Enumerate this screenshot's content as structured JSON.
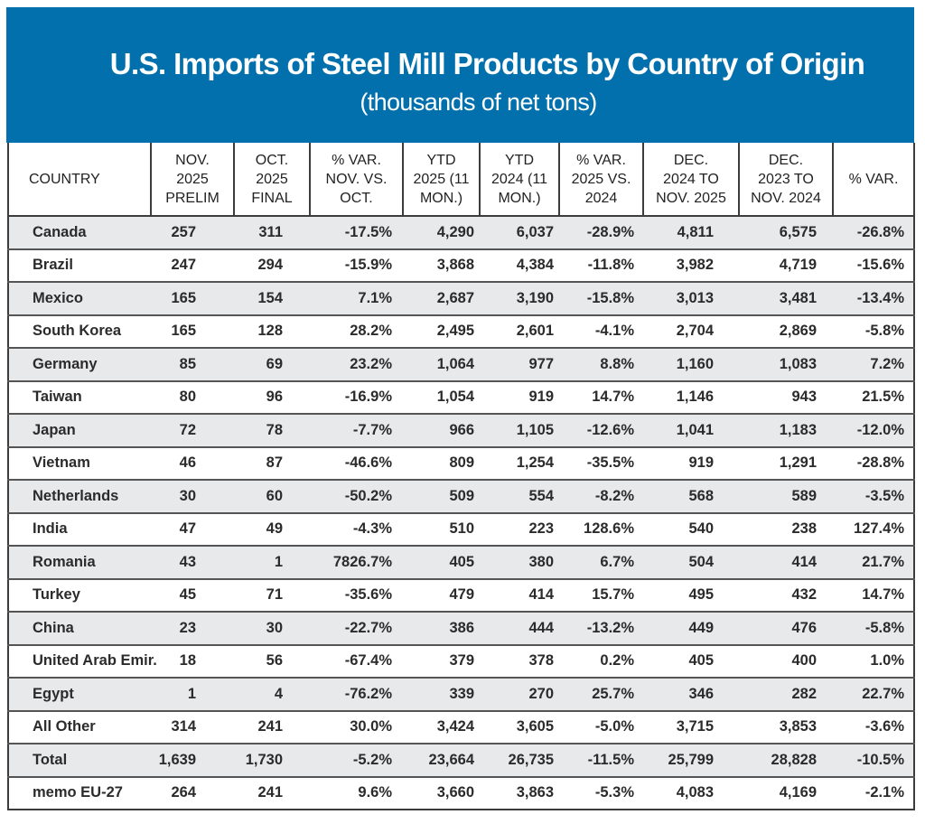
{
  "header": {
    "title": "U.S. Imports of Steel Mill Products by Country of Origin",
    "subtitle": "(thousands of net tons)",
    "banner_color": "#0270ad"
  },
  "table": {
    "columns": [
      "COUNTRY",
      "NOV. 2025 PRELIM",
      "OCT. 2025 FINAL",
      "% VAR. NOV. VS. OCT.",
      "YTD 2025 (11 MON.)",
      "YTD 2024 (11 MON.)",
      "% VAR. 2025 VS. 2024",
      "DEC. 2024 TO NOV. 2025",
      "DEC. 2023 TO NOV. 2024",
      "% VAR."
    ],
    "column_lines": [
      [
        "COUNTRY"
      ],
      [
        "NOV.",
        "2025",
        "PRELIM"
      ],
      [
        "OCT.",
        "2025",
        "FINAL"
      ],
      [
        "% VAR.",
        "NOV. VS.",
        "OCT."
      ],
      [
        "YTD",
        "2025 (11",
        "MON.)"
      ],
      [
        "YTD",
        "2024 (11",
        "MON.)"
      ],
      [
        "% VAR.",
        "2025 VS.",
        "2024"
      ],
      [
        "DEC.",
        "2024 TO",
        "NOV. 2025"
      ],
      [
        "DEC.",
        "2023 TO",
        "NOV. 2024"
      ],
      [
        "% VAR."
      ]
    ],
    "rows": [
      [
        "Canada",
        "257",
        "311",
        "-17.5%",
        "4,290",
        "6,037",
        "-28.9%",
        "4,811",
        "6,575",
        "-26.8%"
      ],
      [
        "Brazil",
        "247",
        "294",
        "-15.9%",
        "3,868",
        "4,384",
        "-11.8%",
        "3,982",
        "4,719",
        "-15.6%"
      ],
      [
        "Mexico",
        "165",
        "154",
        "7.1%",
        "2,687",
        "3,190",
        "-15.8%",
        "3,013",
        "3,481",
        "-13.4%"
      ],
      [
        "South Korea",
        "165",
        "128",
        "28.2%",
        "2,495",
        "2,601",
        "-4.1%",
        "2,704",
        "2,869",
        "-5.8%"
      ],
      [
        "Germany",
        "85",
        "69",
        "23.2%",
        "1,064",
        "977",
        "8.8%",
        "1,160",
        "1,083",
        "7.2%"
      ],
      [
        "Taiwan",
        "80",
        "96",
        "-16.9%",
        "1,054",
        "919",
        "14.7%",
        "1,146",
        "943",
        "21.5%"
      ],
      [
        "Japan",
        "72",
        "78",
        "-7.7%",
        "966",
        "1,105",
        "-12.6%",
        "1,041",
        "1,183",
        "-12.0%"
      ],
      [
        "Vietnam",
        "46",
        "87",
        "-46.6%",
        "809",
        "1,254",
        "-35.5%",
        "919",
        "1,291",
        "-28.8%"
      ],
      [
        "Netherlands",
        "30",
        "60",
        "-50.2%",
        "509",
        "554",
        "-8.2%",
        "568",
        "589",
        "-3.5%"
      ],
      [
        "India",
        "47",
        "49",
        "-4.3%",
        "510",
        "223",
        "128.6%",
        "540",
        "238",
        "127.4%"
      ],
      [
        "Romania",
        "43",
        "1",
        "7826.7%",
        "405",
        "380",
        "6.7%",
        "504",
        "414",
        "21.7%"
      ],
      [
        "Turkey",
        "45",
        "71",
        "-35.6%",
        "479",
        "414",
        "15.7%",
        "495",
        "432",
        "14.7%"
      ],
      [
        "China",
        "23",
        "30",
        "-22.7%",
        "386",
        "444",
        "-13.2%",
        "449",
        "476",
        "-5.8%"
      ],
      [
        "United Arab Emir.",
        "18",
        "56",
        "-67.4%",
        "379",
        "378",
        "0.2%",
        "405",
        "400",
        "1.0%"
      ],
      [
        "Egypt",
        "1",
        "4",
        "-76.2%",
        "339",
        "270",
        "25.7%",
        "346",
        "282",
        "22.7%"
      ],
      [
        "All Other",
        "314",
        "241",
        "30.0%",
        "3,424",
        "3,605",
        "-5.0%",
        "3,715",
        "3,853",
        "-3.6%"
      ],
      [
        "Total",
        "1,639",
        "1,730",
        "-5.2%",
        "23,664",
        "26,735",
        "-11.5%",
        "25,799",
        "28,828",
        "-10.5%"
      ],
      [
        "memo EU-27",
        "264",
        "241",
        "9.6%",
        "3,660",
        "3,863",
        "-5.3%",
        "4,083",
        "4,169",
        "-2.1%"
      ]
    ]
  }
}
